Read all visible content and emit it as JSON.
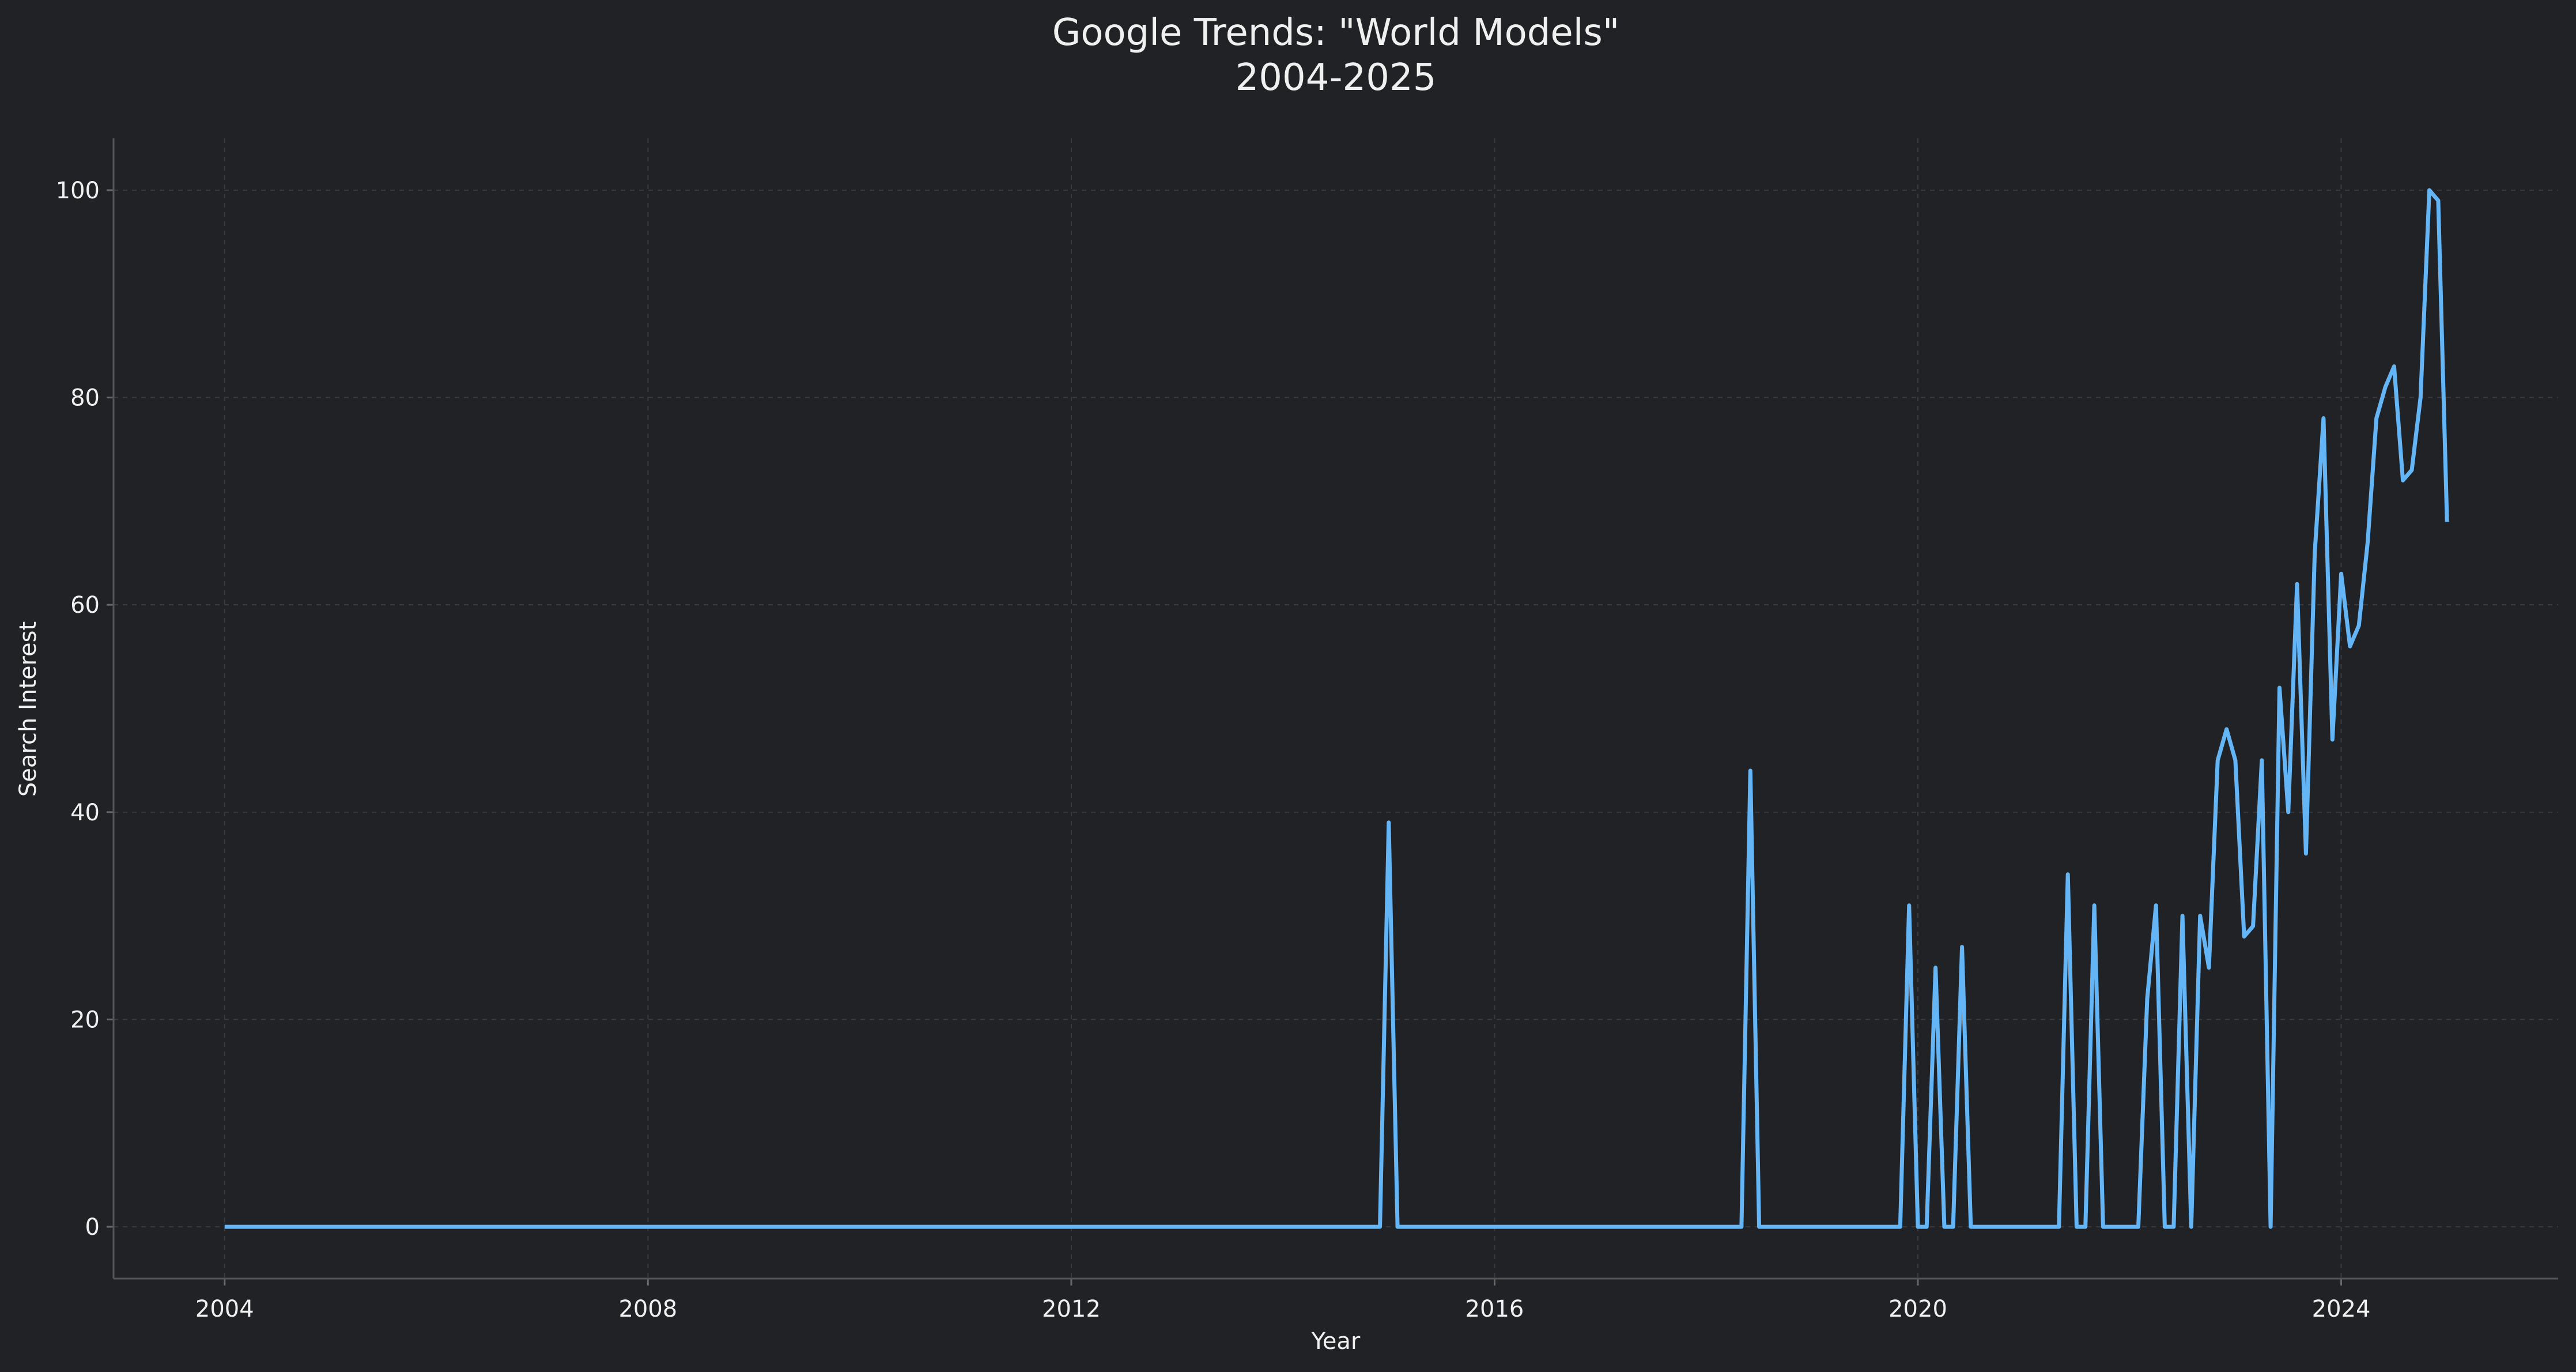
{
  "chart_data": {
    "type": "line",
    "title": "Google Trends: \"World Models\"",
    "subtitle": "2004-2025",
    "x_label": "Year",
    "y_label": "Search Interest",
    "color": "#64b5f6",
    "grid": true,
    "x": [
      2004.0,
      2014.917,
      2015.0,
      2015.083,
      2018.333,
      2018.417,
      2018.5,
      2019.833,
      2019.917,
      2020.0,
      2020.083,
      2020.167,
      2020.25,
      2020.333,
      2020.417,
      2020.5,
      2021.333,
      2021.417,
      2021.5,
      2021.583,
      2021.667,
      2021.75,
      2022.083,
      2022.167,
      2022.25,
      2022.333,
      2022.417,
      2022.5,
      2022.583,
      2022.667,
      2022.75,
      2022.833,
      2022.917,
      2023.0,
      2023.083,
      2023.167,
      2023.25,
      2023.333,
      2023.417,
      2023.5,
      2023.583,
      2023.667,
      2023.75,
      2023.833,
      2023.917,
      2024.0,
      2024.083,
      2024.167,
      2024.25,
      2024.333,
      2024.417,
      2024.5,
      2024.583,
      2024.667,
      2024.75,
      2024.833,
      2024.917,
      2025.0
    ],
    "values": [
      0,
      0,
      39,
      0,
      0,
      44,
      0,
      0,
      31,
      0,
      0,
      25,
      0,
      0,
      27,
      0,
      0,
      34,
      0,
      0,
      31,
      0,
      0,
      22,
      31,
      0,
      0,
      30,
      0,
      30,
      25,
      45,
      48,
      45,
      28,
      29,
      45,
      0,
      52,
      40,
      62,
      36,
      65,
      78,
      47,
      63,
      56,
      58,
      66,
      78,
      81,
      83,
      72,
      73,
      80,
      100,
      99,
      68
    ],
    "xlim": [
      2002.95,
      2026.05
    ],
    "ylim": [
      -5,
      105
    ],
    "xticks": [
      2004,
      2008,
      2012,
      2016,
      2020,
      2024
    ],
    "yticks": [
      0,
      20,
      40,
      60,
      80,
      100
    ]
  }
}
